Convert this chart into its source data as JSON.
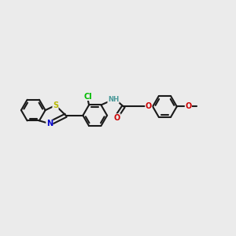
{
  "bg_color": "#ebebeb",
  "bond_color": "#1a1a1a",
  "S_color": "#b8b800",
  "N_color": "#0000cc",
  "O_color": "#cc0000",
  "Cl_color": "#00bb00",
  "NH_color": "#4a9999",
  "figsize": [
    3.0,
    3.0
  ],
  "dpi": 100,
  "xlim": [
    0,
    12
  ],
  "ylim": [
    0,
    12
  ],
  "ring_r": 0.62,
  "bond_lw": 1.5,
  "dbl_off": 0.09,
  "font_s": 7.0
}
